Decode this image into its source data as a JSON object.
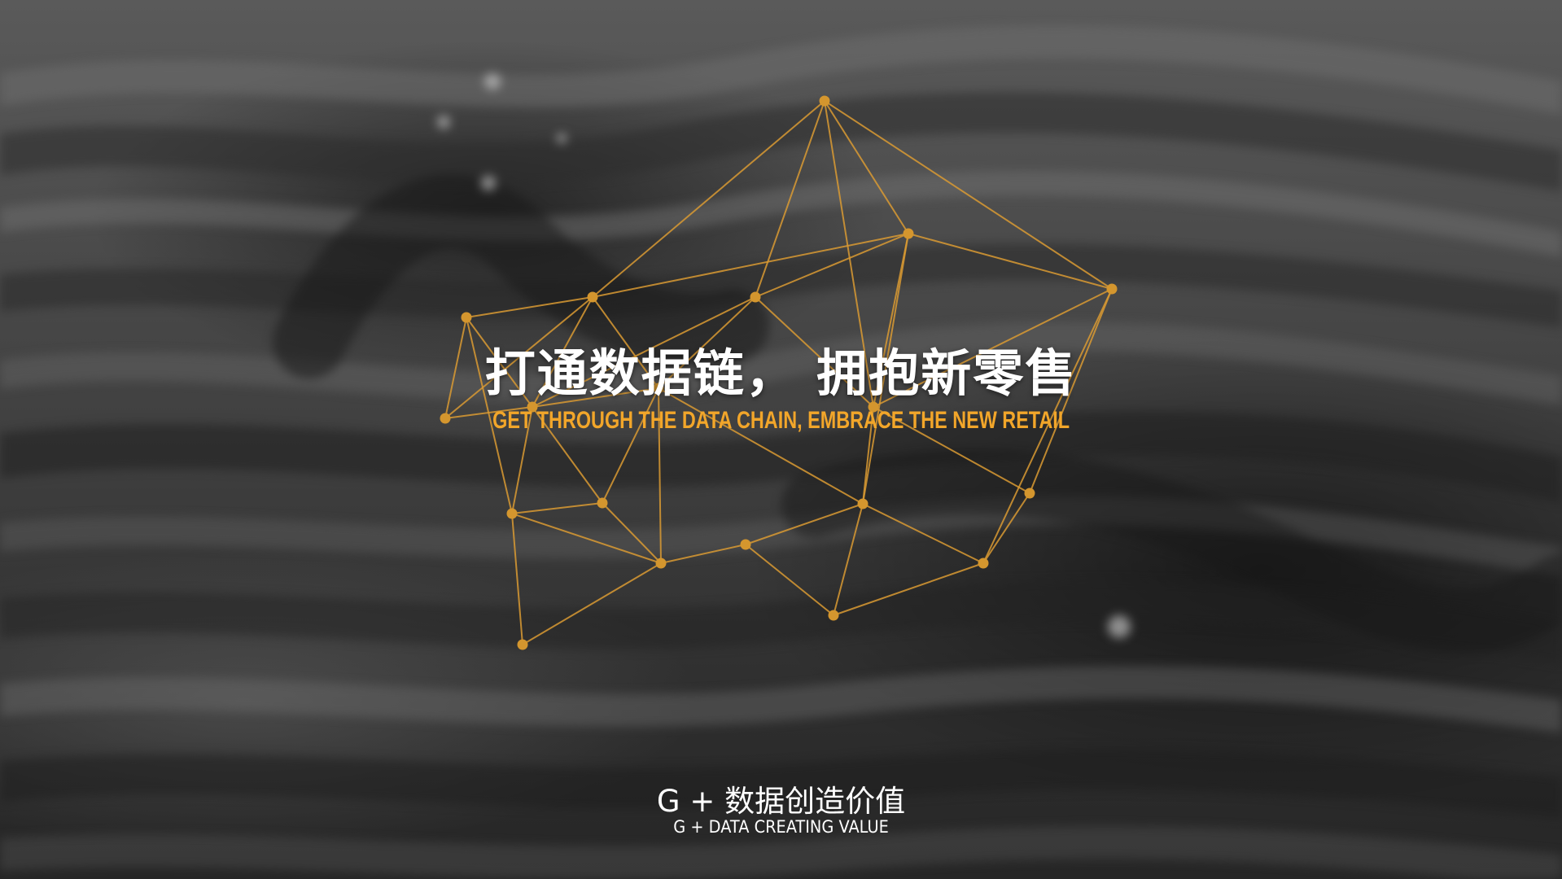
{
  "headline": {
    "chinese": "打通数据链， 拥抱新零售",
    "english": "GET THROUGH THE DATA CHAIN, EMBRACE THE NEW RETAIL"
  },
  "brand": {
    "chinese": "G + 数据创造价值",
    "english": "G + DATA CREATING VALUE"
  },
  "colors": {
    "accent": "#f2a62a",
    "network_line": "#d99a32",
    "text": "#ffffff",
    "background": "#3a3a3a"
  },
  "decoration": {
    "background": "blurred grayscale ocean waves",
    "overlay": "gold polygon network"
  }
}
